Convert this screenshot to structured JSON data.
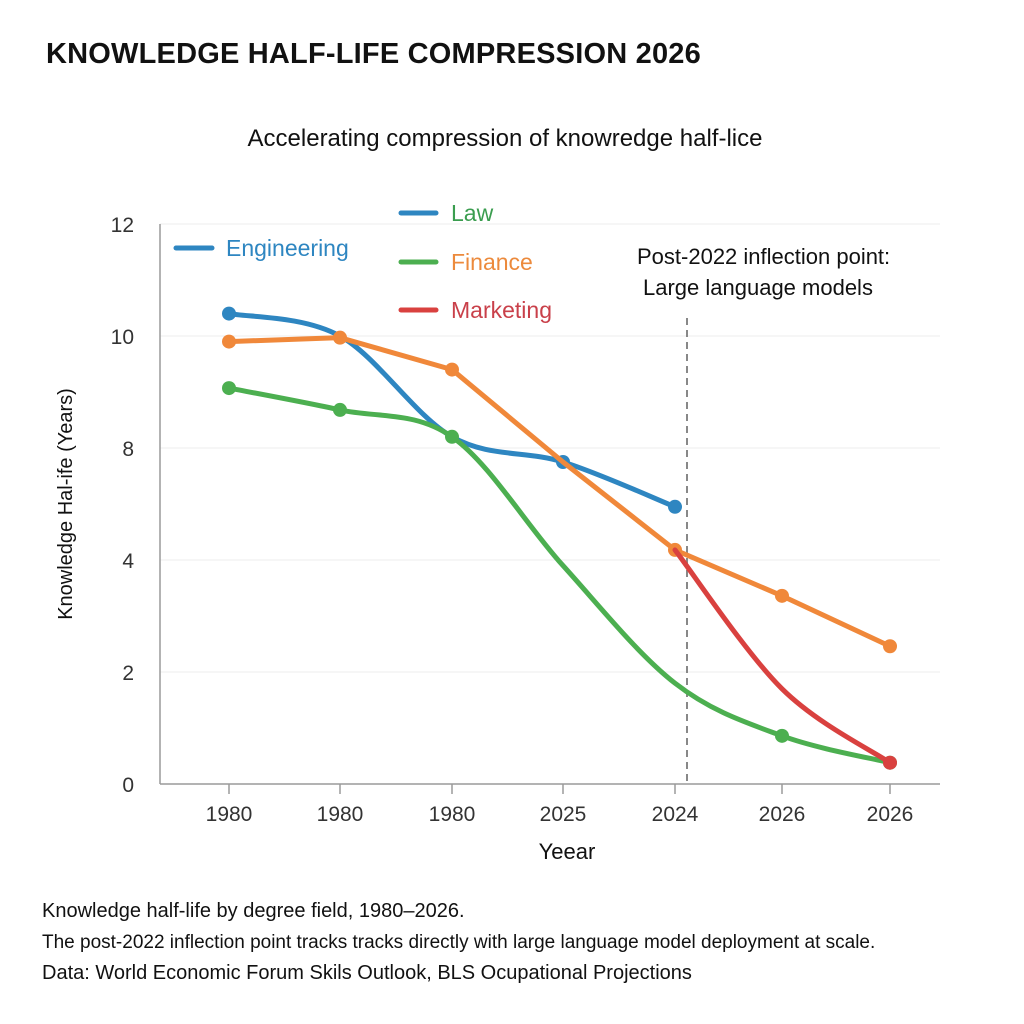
{
  "title": "KNOWLEDGE HALF-LIFE COMPRESSION 2026",
  "footer": {
    "line1": "Knowledge half-life by degree field, 1980–2026.",
    "line2": "The post-2022 inflection point tracks tracks directly with large language model deployment at scale.",
    "line3": "Data: World Economic Forum Skils Outlook, BLS Ocupational Projections"
  },
  "chart_data": {
    "type": "line",
    "title": "Accelerating compression of knowredge half-lice",
    "xlabel": "Yeear",
    "ylabel": "Knowledge Hal-ife (Years)",
    "categories": [
      "1980",
      "1980",
      "1980",
      "2025",
      "2024",
      "2026",
      "2026"
    ],
    "yticks": [
      0,
      2,
      4,
      8,
      10,
      12
    ],
    "ylim": [
      0,
      12
    ],
    "grid": "horizontal",
    "legend_placement": "top-left",
    "annotation": {
      "line1": "Post-2022 inflection point:",
      "line2": "Large language models",
      "position_category_index": 4.1
    },
    "series": [
      {
        "name": "Engineering",
        "color": "#2e86c1",
        "text_color": "#2e86c1",
        "legend_line_color": "#2e86c1",
        "smooth": true,
        "values": [
          10.4,
          10.0,
          8.2,
          7.5,
          5.9,
          null,
          null
        ],
        "markers": [
          true,
          false,
          false,
          true,
          true,
          false,
          false
        ]
      },
      {
        "name": "Law",
        "color": "#4caf50",
        "text_color": "#3a9d4f",
        "legend_line_color": "#2e86c1",
        "smooth": true,
        "values": [
          9.07,
          8.68,
          8.2,
          3.9,
          1.8,
          0.86,
          0.38
        ],
        "markers": [
          true,
          true,
          true,
          false,
          false,
          true,
          true
        ]
      },
      {
        "name": "Finance",
        "color": "#f0883a",
        "text_color": "#ec8a3c",
        "legend_line_color": "#4caf50",
        "smooth": false,
        "values": [
          9.9,
          9.97,
          9.4,
          7.5,
          4.36,
          3.36,
          2.46
        ],
        "markers": [
          true,
          true,
          true,
          false,
          true,
          true,
          true
        ]
      },
      {
        "name": "Marketing",
        "color": "#d9413f",
        "text_color": "#c9404a",
        "legend_line_color": "#d9413f",
        "smooth": true,
        "values": [
          null,
          null,
          null,
          null,
          4.36,
          1.7,
          0.38
        ],
        "markers": [
          false,
          false,
          false,
          false,
          false,
          false,
          true
        ]
      }
    ]
  }
}
